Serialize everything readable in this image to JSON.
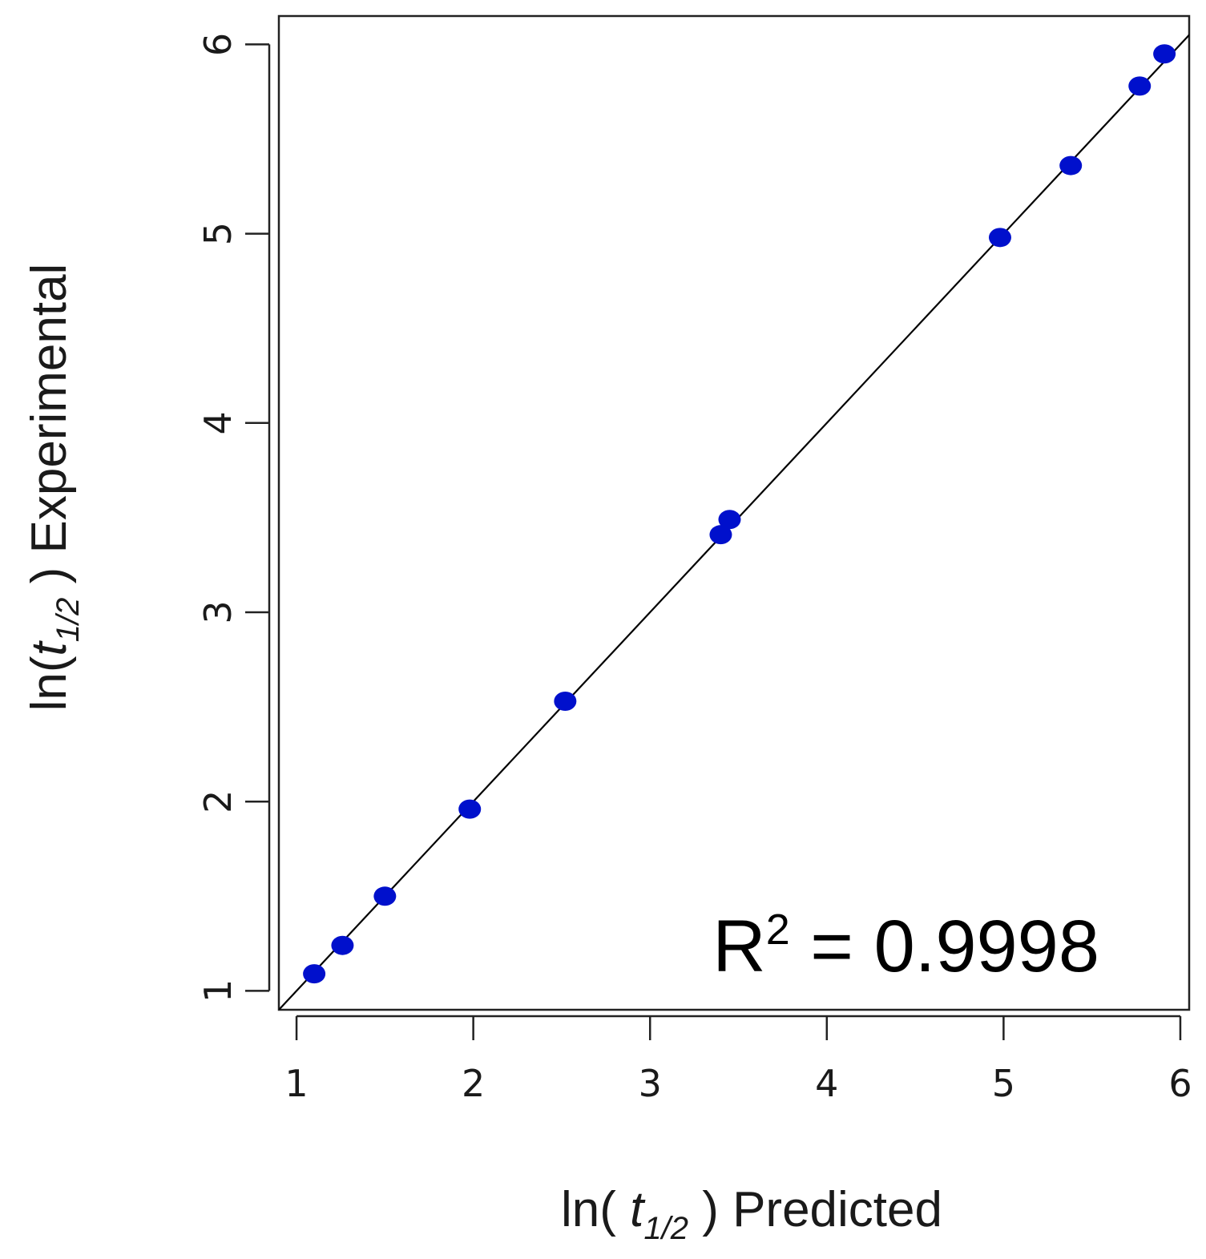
{
  "chart_data": {
    "type": "scatter",
    "title": "",
    "xlabel": {
      "prefix": "ln( ",
      "var": "t",
      "sub": "1/2",
      "suffix": " ) Predicted"
    },
    "ylabel": {
      "prefix": "ln(",
      "var": "t",
      "sub": "1/2",
      "suffix": "  ) Experimental"
    },
    "xlim": [
      0.9,
      6.05
    ],
    "ylim": [
      0.9,
      6.15
    ],
    "xticks": [
      1,
      2,
      3,
      4,
      5,
      6
    ],
    "yticks": [
      1,
      2,
      3,
      4,
      5,
      6
    ],
    "xtick_labels": [
      "1",
      "2",
      "3",
      "4",
      "5",
      "6"
    ],
    "ytick_labels": [
      "1",
      "2",
      "3",
      "4",
      "5",
      "6"
    ],
    "grid": false,
    "reference_line": {
      "type": "identity",
      "color": "#000000"
    },
    "point_color": "#0010cc",
    "points": [
      {
        "x": 1.1,
        "y": 1.09
      },
      {
        "x": 1.26,
        "y": 1.24
      },
      {
        "x": 1.5,
        "y": 1.5
      },
      {
        "x": 1.98,
        "y": 1.96
      },
      {
        "x": 2.52,
        "y": 2.53
      },
      {
        "x": 3.4,
        "y": 3.41
      },
      {
        "x": 3.45,
        "y": 3.49
      },
      {
        "x": 4.98,
        "y": 4.98
      },
      {
        "x": 5.38,
        "y": 5.36
      },
      {
        "x": 5.77,
        "y": 5.78
      },
      {
        "x": 5.91,
        "y": 5.95
      }
    ],
    "annotation": {
      "base": "R",
      "sup": "2",
      "text": " = 0.9998"
    }
  }
}
